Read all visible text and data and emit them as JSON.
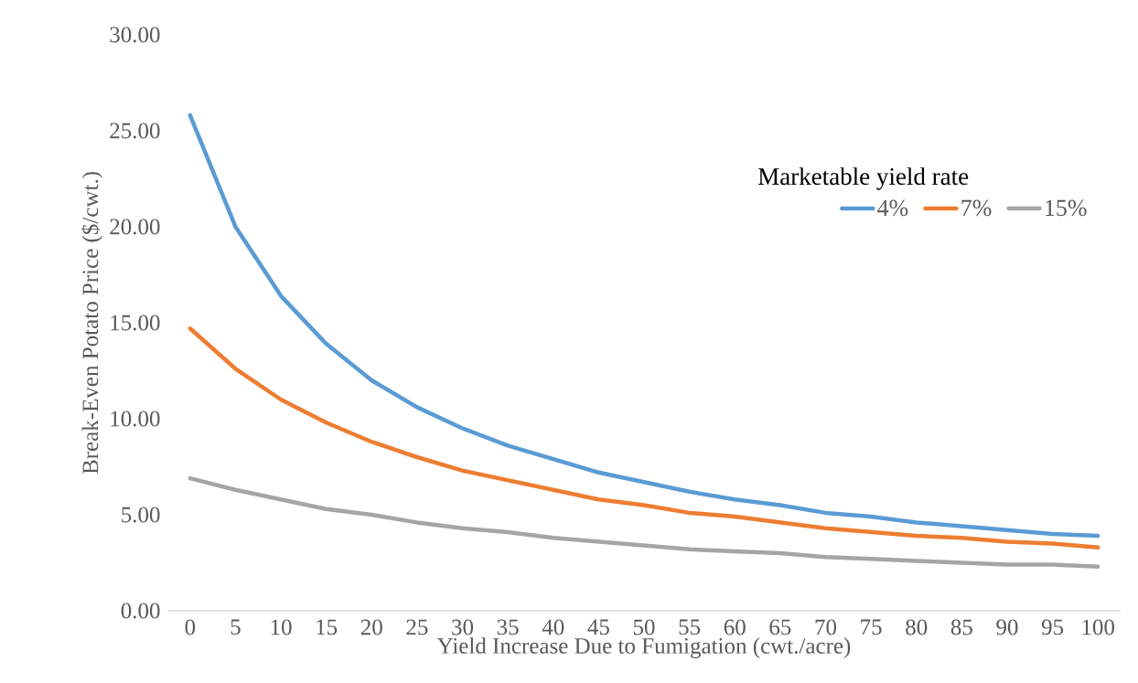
{
  "chart_data": {
    "type": "line",
    "xlabel": "Yield Increase Due to Fumigation (cwt./acre)",
    "ylabel": "Break-Even Potato Price ($/cwt.)",
    "legend_title": "Marketable yield rate",
    "categories": [
      "0",
      "5",
      "10",
      "15",
      "20",
      "25",
      "30",
      "35",
      "40",
      "45",
      "50",
      "55",
      "60",
      "65",
      "70",
      "75",
      "80",
      "85",
      "90",
      "95",
      "100"
    ],
    "series": [
      {
        "name": "4%",
        "color": "#5b9bd5",
        "values": [
          25.8,
          20.0,
          16.4,
          13.9,
          12.0,
          10.6,
          9.5,
          8.6,
          7.9,
          7.2,
          6.7,
          6.2,
          5.8,
          5.5,
          5.1,
          4.9,
          4.6,
          4.4,
          4.2,
          4.0,
          3.9
        ]
      },
      {
        "name": "7%",
        "color": "#ed7d31",
        "values": [
          14.7,
          12.6,
          11.0,
          9.8,
          8.8,
          8.0,
          7.3,
          6.8,
          6.3,
          5.8,
          5.5,
          5.1,
          4.9,
          4.6,
          4.3,
          4.1,
          3.9,
          3.8,
          3.6,
          3.5,
          3.3
        ]
      },
      {
        "name": "15%",
        "color": "#a5a5a5",
        "values": [
          6.9,
          6.3,
          5.8,
          5.3,
          5.0,
          4.6,
          4.3,
          4.1,
          3.8,
          3.6,
          3.4,
          3.2,
          3.1,
          3.0,
          2.8,
          2.7,
          2.6,
          2.5,
          2.4,
          2.4,
          2.3
        ]
      }
    ],
    "ylim": [
      0,
      30
    ],
    "yticks": [
      {
        "value": 0,
        "label": "0.00"
      },
      {
        "value": 5,
        "label": "5.00"
      },
      {
        "value": 10,
        "label": "10.00"
      },
      {
        "value": 15,
        "label": "15.00"
      },
      {
        "value": 20,
        "label": "20.00"
      },
      {
        "value": 25,
        "label": "25.00"
      },
      {
        "value": 30,
        "label": "30.00"
      }
    ],
    "grid": false,
    "legend": "top right",
    "marker": "none",
    "line_style": "solid"
  }
}
